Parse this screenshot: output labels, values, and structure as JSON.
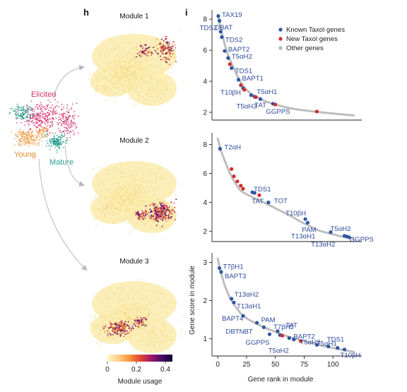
{
  "panel_labels": {
    "h": "h",
    "i": "i"
  },
  "overview": {
    "labels": {
      "elicited": "Elicited",
      "young": "Young",
      "mature": "Mature"
    },
    "colors": {
      "elicited": "#d6336c",
      "young": "#f0a04b",
      "mature": "#2a9d8f"
    }
  },
  "modules": [
    {
      "title": "Module 1"
    },
    {
      "title": "Module 2"
    },
    {
      "title": "Module 3"
    }
  ],
  "colorbar": {
    "label": "Module usage",
    "ticks": [
      "0",
      "0.2",
      "0.4"
    ],
    "range": [
      0,
      0.45
    ],
    "colors": [
      "#fff8c8",
      "#fbd089",
      "#f89640",
      "#e2482f",
      "#a1176a",
      "#4a0b6b",
      "#0a0530"
    ]
  },
  "legend": {
    "items": [
      {
        "label": "Known Taxol genes",
        "color": "#2f55a4"
      },
      {
        "label": "New Taxol genes",
        "color": "#d62b2b"
      },
      {
        "label": "Other genes",
        "color": "#b3b3b3"
      }
    ]
  },
  "chart_data": [
    {
      "type": "scatter",
      "panel": "module-1",
      "xlabel": "",
      "ylabel": "",
      "xlim": [
        -5,
        125
      ],
      "ylim": [
        1.5,
        8.6
      ],
      "yticks": [
        2,
        4,
        6,
        8
      ],
      "xticks": [],
      "curve": [
        [
          0,
          8.3
        ],
        [
          2,
          7.6
        ],
        [
          4,
          7.0
        ],
        [
          6,
          6.4
        ],
        [
          8,
          5.9
        ],
        [
          10,
          5.5
        ],
        [
          12,
          5.15
        ],
        [
          14,
          4.85
        ],
        [
          16,
          4.5
        ],
        [
          18,
          4.2
        ],
        [
          20,
          3.95
        ],
        [
          22,
          3.7
        ],
        [
          25,
          3.45
        ],
        [
          28,
          3.25
        ],
        [
          32,
          3.05
        ],
        [
          36,
          2.9
        ],
        [
          40,
          2.75
        ],
        [
          45,
          2.62
        ],
        [
          50,
          2.5
        ],
        [
          55,
          2.4
        ],
        [
          60,
          2.3
        ],
        [
          70,
          2.18
        ],
        [
          80,
          2.08
        ],
        [
          90,
          2.0
        ],
        [
          100,
          1.92
        ],
        [
          110,
          1.85
        ],
        [
          118,
          1.8
        ]
      ],
      "points": [
        {
          "x": 0.5,
          "y": 8.2,
          "kind": "known",
          "label": "TAX19"
        },
        {
          "x": 1.5,
          "y": 7.9,
          "kind": "known",
          "label": "TDS2"
        },
        {
          "x": 2.5,
          "y": 7.2,
          "kind": "known",
          "label": "DBAT"
        },
        {
          "x": 3.5,
          "y": 6.85,
          "kind": "known",
          "label": "TDS2"
        },
        {
          "x": 6,
          "y": 5.95,
          "kind": "known",
          "label": "BAPT2"
        },
        {
          "x": 9,
          "y": 5.5,
          "kind": "known",
          "label": "T5αH2"
        },
        {
          "x": 10.5,
          "y": 5.1,
          "kind": "new",
          "label": ""
        },
        {
          "x": 12,
          "y": 4.85,
          "kind": "known",
          "label": "TDS1"
        },
        {
          "x": 18,
          "y": 4.1,
          "kind": "known",
          "label": "BAPT1"
        },
        {
          "x": 20,
          "y": 3.75,
          "kind": "new",
          "label": ""
        },
        {
          "x": 22,
          "y": 3.55,
          "kind": "known",
          "label": "T10βH"
        },
        {
          "x": 23,
          "y": 3.45,
          "kind": "new",
          "label": ""
        },
        {
          "x": 29,
          "y": 3.1,
          "kind": "known",
          "label": "T5αH1"
        },
        {
          "x": 32,
          "y": 3.0,
          "kind": "known",
          "label": "TAT"
        },
        {
          "x": 33,
          "y": 2.98,
          "kind": "new",
          "label": ""
        },
        {
          "x": 37,
          "y": 2.85,
          "kind": "known",
          "label": "T5αH3"
        },
        {
          "x": 48,
          "y": 2.55,
          "kind": "known",
          "label": "GGPPS"
        },
        {
          "x": 50,
          "y": 2.5,
          "kind": "new",
          "label": ""
        },
        {
          "x": 86,
          "y": 2.05,
          "kind": "new",
          "label": ""
        }
      ]
    },
    {
      "type": "scatter",
      "panel": "module-2",
      "xlabel": "",
      "ylabel": "",
      "xlim": [
        -5,
        125
      ],
      "ylim": [
        1.3,
        8.8
      ],
      "yticks": [
        2,
        4,
        6,
        8
      ],
      "xticks": [],
      "curve": [
        [
          0,
          8.4
        ],
        [
          2,
          7.8
        ],
        [
          4,
          7.3
        ],
        [
          6,
          6.9
        ],
        [
          8,
          6.5
        ],
        [
          10,
          6.1
        ],
        [
          12,
          5.8
        ],
        [
          14,
          5.5
        ],
        [
          16,
          5.25
        ],
        [
          18,
          5.0
        ],
        [
          20,
          4.8
        ],
        [
          24,
          4.6
        ],
        [
          28,
          4.45
        ],
        [
          32,
          4.3
        ],
        [
          36,
          4.15
        ],
        [
          40,
          4.0
        ],
        [
          45,
          3.8
        ],
        [
          50,
          3.6
        ],
        [
          55,
          3.4
        ],
        [
          60,
          3.2
        ],
        [
          65,
          3.0
        ],
        [
          70,
          2.75
        ],
        [
          75,
          2.55
        ],
        [
          80,
          2.35
        ],
        [
          85,
          2.15
        ],
        [
          90,
          2.0
        ],
        [
          95,
          1.9
        ],
        [
          100,
          1.8
        ],
        [
          105,
          1.7
        ],
        [
          110,
          1.6
        ],
        [
          118,
          1.5
        ]
      ],
      "points": [
        {
          "x": 2,
          "y": 7.7,
          "kind": "known",
          "label": "T2αH"
        },
        {
          "x": 12,
          "y": 6.3,
          "kind": "new",
          "label": ""
        },
        {
          "x": 14,
          "y": 5.8,
          "kind": "new",
          "label": ""
        },
        {
          "x": 17,
          "y": 5.45,
          "kind": "new",
          "label": ""
        },
        {
          "x": 20,
          "y": 5.15,
          "kind": "new",
          "label": ""
        },
        {
          "x": 22,
          "y": 4.95,
          "kind": "new",
          "label": ""
        },
        {
          "x": 30,
          "y": 4.7,
          "kind": "known",
          "label": "TDS1"
        },
        {
          "x": 32,
          "y": 4.65,
          "kind": "known",
          "label": "TAT"
        },
        {
          "x": 36,
          "y": 4.5,
          "kind": "new",
          "label": ""
        },
        {
          "x": 44,
          "y": 4.0,
          "kind": "known",
          "label": "TOT"
        },
        {
          "x": 76,
          "y": 2.85,
          "kind": "known",
          "label": "T10βH"
        },
        {
          "x": 78,
          "y": 2.6,
          "kind": "known",
          "label": "PAM"
        },
        {
          "x": 98,
          "y": 1.95,
          "kind": "known",
          "label": "T13αH1"
        },
        {
          "x": 110,
          "y": 1.7,
          "kind": "known",
          "label": "T5αH2"
        },
        {
          "x": 112,
          "y": 1.65,
          "kind": "known",
          "label": "GGPPS"
        },
        {
          "x": 114,
          "y": 1.6,
          "kind": "known",
          "label": "T13αH2"
        }
      ]
    },
    {
      "type": "scatter",
      "panel": "module-3",
      "xlabel": "Gene rank in module",
      "ylabel": "Gene score in module",
      "xlim": [
        -5,
        125
      ],
      "ylim": [
        0.55,
        3.25
      ],
      "yticks": [
        1,
        2,
        3
      ],
      "xticks": [
        0,
        25,
        50,
        75,
        100
      ],
      "curve": [
        [
          0,
          3.1
        ],
        [
          2,
          2.8
        ],
        [
          4,
          2.6
        ],
        [
          6,
          2.4
        ],
        [
          8,
          2.25
        ],
        [
          10,
          2.1
        ],
        [
          12,
          2.0
        ],
        [
          14,
          1.9
        ],
        [
          16,
          1.82
        ],
        [
          18,
          1.74
        ],
        [
          20,
          1.66
        ],
        [
          24,
          1.56
        ],
        [
          28,
          1.48
        ],
        [
          32,
          1.42
        ],
        [
          36,
          1.36
        ],
        [
          40,
          1.3
        ],
        [
          45,
          1.24
        ],
        [
          50,
          1.18
        ],
        [
          55,
          1.12
        ],
        [
          60,
          1.07
        ],
        [
          65,
          1.02
        ],
        [
          70,
          0.98
        ],
        [
          75,
          0.94
        ],
        [
          80,
          0.9
        ],
        [
          85,
          0.86
        ],
        [
          90,
          0.82
        ],
        [
          95,
          0.79
        ],
        [
          100,
          0.76
        ],
        [
          105,
          0.73
        ],
        [
          110,
          0.7
        ],
        [
          118,
          0.66
        ]
      ],
      "points": [
        {
          "x": 1.5,
          "y": 2.85,
          "kind": "known",
          "label": "T7βH1"
        },
        {
          "x": 3,
          "y": 2.75,
          "kind": "known",
          "label": "BAPT3"
        },
        {
          "x": 12,
          "y": 2.05,
          "kind": "known",
          "label": "T13αH2"
        },
        {
          "x": 14,
          "y": 1.95,
          "kind": "known",
          "label": "T13αH1"
        },
        {
          "x": 22,
          "y": 1.6,
          "kind": "known",
          "label": "BAPT4"
        },
        {
          "x": 34,
          "y": 1.42,
          "kind": "known",
          "label": "PAM"
        },
        {
          "x": 40,
          "y": 1.3,
          "kind": "known",
          "label": "DBTNBT"
        },
        {
          "x": 45,
          "y": 1.12,
          "kind": "known",
          "label": "GGPPS"
        },
        {
          "x": 52,
          "y": 1.2,
          "kind": "known",
          "label": "T7βH2"
        },
        {
          "x": 54,
          "y": 1.1,
          "kind": "known",
          "label": "TAT"
        },
        {
          "x": 56,
          "y": 1.08,
          "kind": "new",
          "label": ""
        },
        {
          "x": 62,
          "y": 1.02,
          "kind": "known",
          "label": "BAPT2"
        },
        {
          "x": 66,
          "y": 0.98,
          "kind": "known",
          "label": "T5αH2"
        },
        {
          "x": 72,
          "y": 0.94,
          "kind": "new",
          "label": ""
        },
        {
          "x": 86,
          "y": 0.84,
          "kind": "known",
          "label": "T5αH3"
        },
        {
          "x": 96,
          "y": 0.8,
          "kind": "known",
          "label": "TDS1"
        },
        {
          "x": 104,
          "y": 0.76,
          "kind": "known",
          "label": "T5αH1"
        },
        {
          "x": 110,
          "y": 0.72,
          "kind": "known",
          "label": "T10βH"
        }
      ]
    }
  ]
}
